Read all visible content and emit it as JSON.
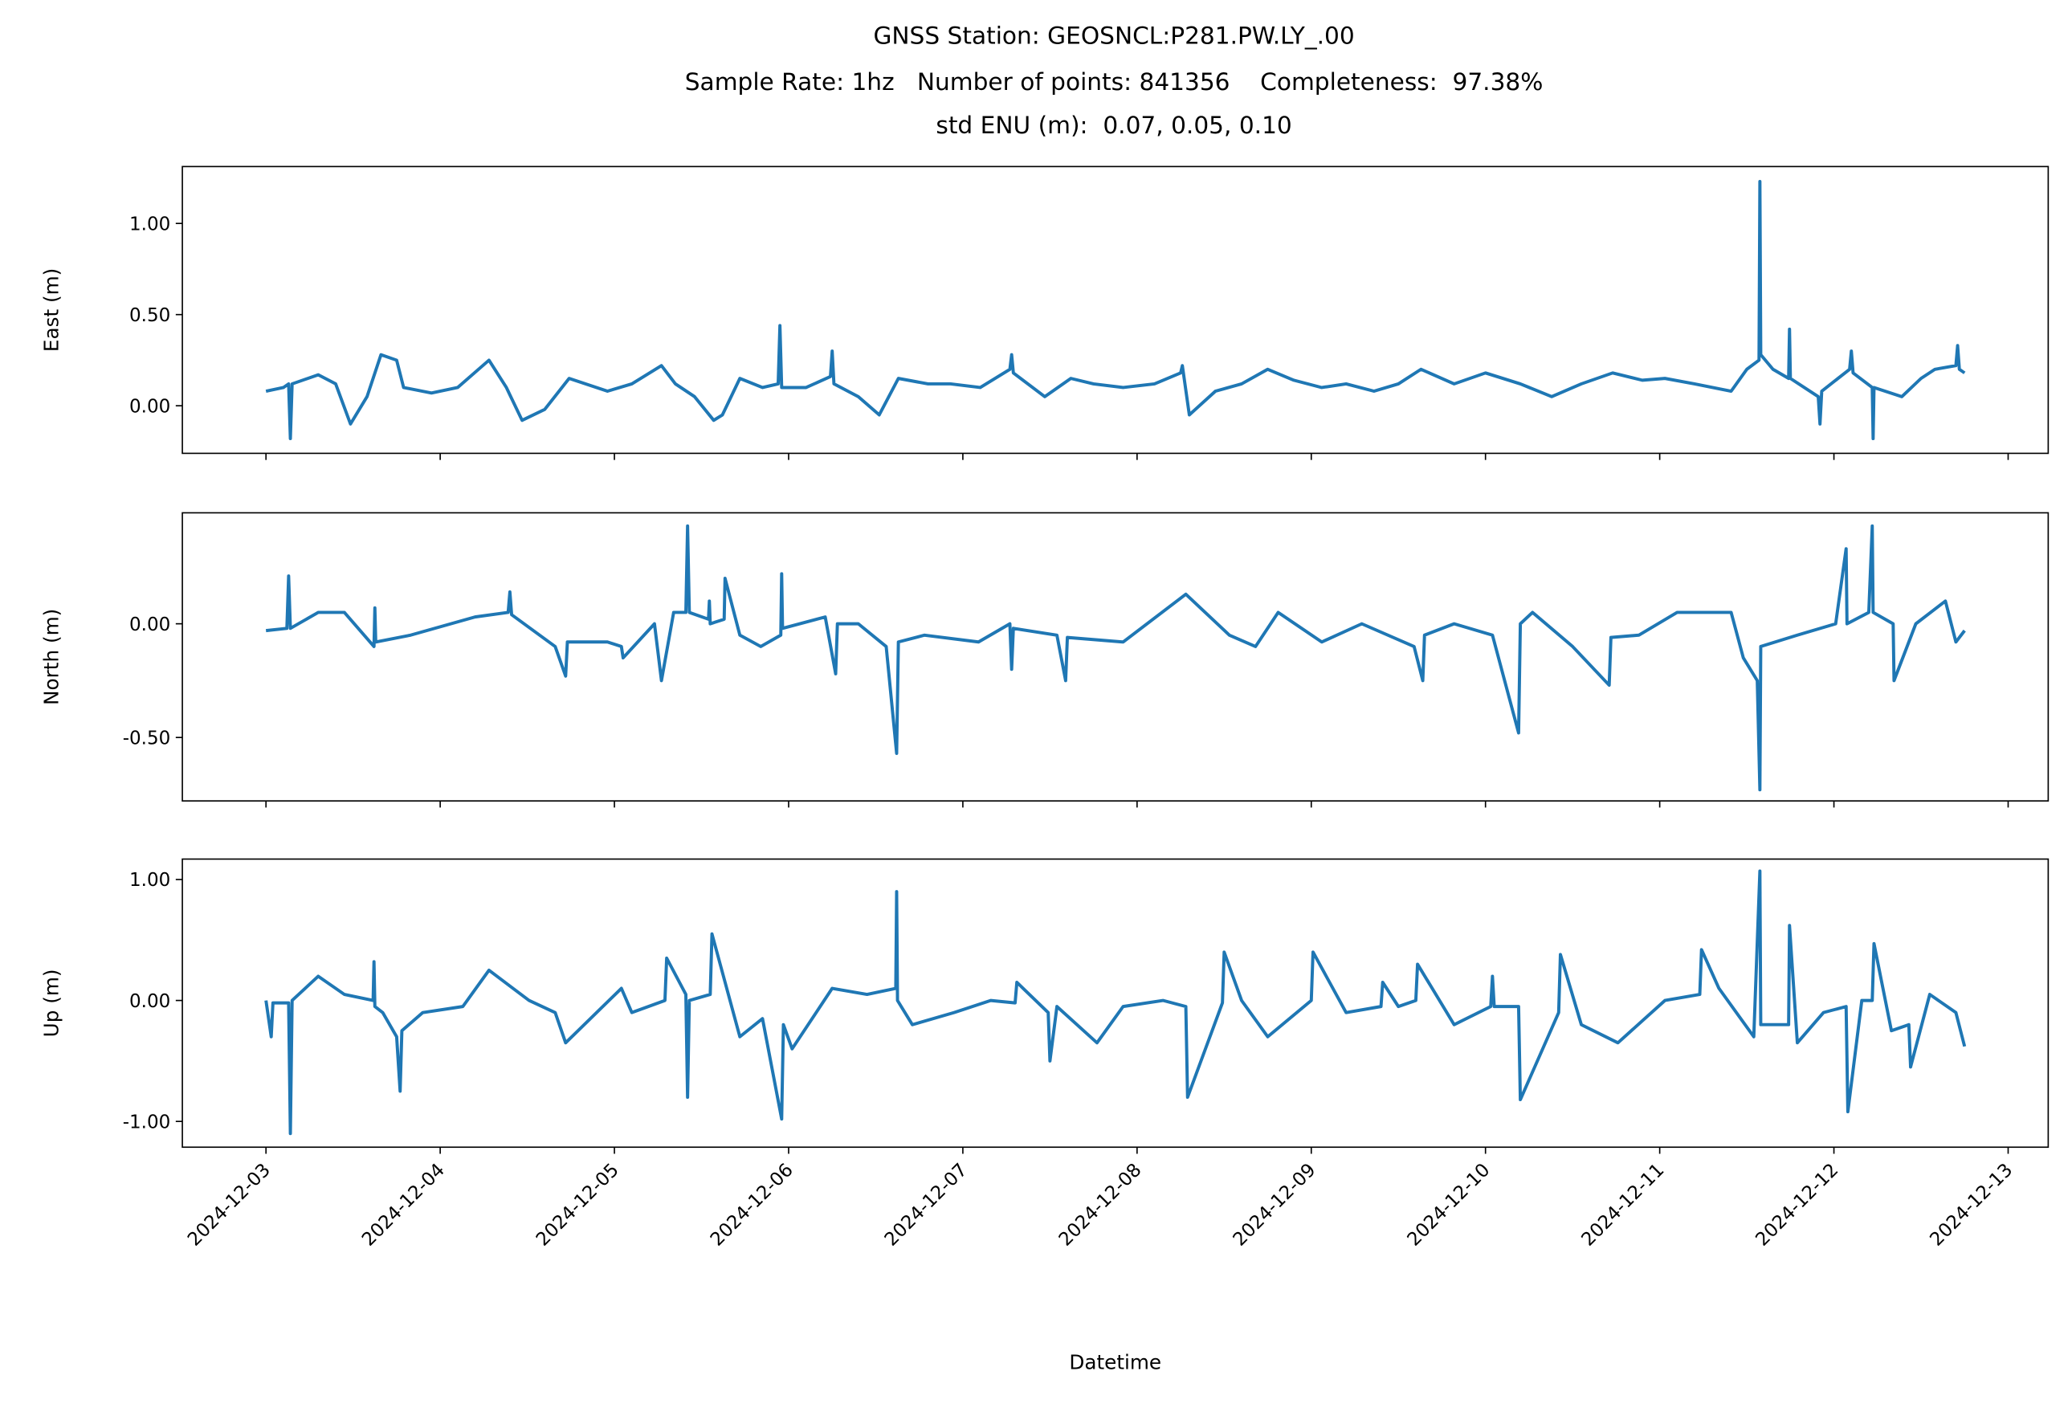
{
  "chart_data": [
    {
      "type": "line",
      "title": "GNSS Station: GEOSNCL:P281.PW.LY_.00",
      "subtitle": [
        "Sample Rate: 1hz   Number of points: 841356    Completeness:  97.38%",
        "std ENU (m):  0.07, 0.05, 0.10"
      ],
      "ylabel": "East (m)",
      "color": "#1f77b4",
      "ylim": [
        -0.261,
        1.312
      ],
      "yticks": [
        {
          "value": 0,
          "label": "0.00"
        },
        {
          "value": 0.5,
          "label": "0.50"
        },
        {
          "value": 1,
          "label": "1.00"
        }
      ],
      "x": [
        20060.0,
        20060.1,
        20060.13,
        20060.14,
        20060.15,
        20060.3,
        20060.4,
        20060.485,
        20060.58,
        20060.66,
        20060.75,
        20060.79,
        20060.95,
        20061.1,
        20061.28,
        20061.38,
        20061.47,
        20061.6,
        20061.74,
        20061.96,
        20062.1,
        20062.27,
        20062.35,
        20062.46,
        20062.57,
        20062.62,
        20062.72,
        20062.85,
        20062.94,
        20062.95,
        20062.96,
        20063.1,
        20063.24,
        20063.25,
        20063.26,
        20063.4,
        20063.52,
        20063.63,
        20063.8,
        20063.93,
        20064.1,
        20064.27,
        20064.28,
        20064.29,
        20064.47,
        20064.62,
        20064.75,
        20064.92,
        20065.1,
        20065.25,
        20065.26,
        20065.3,
        20065.45,
        20065.6,
        20065.75,
        20065.9,
        20066.06,
        20066.2,
        20066.36,
        20066.5,
        20066.63,
        20066.82,
        20067.0,
        20067.2,
        20067.38,
        20067.55,
        20067.73,
        20067.9,
        20068.03,
        20068.2,
        20068.41,
        20068.5,
        20068.57,
        20068.575,
        20068.58,
        20068.65,
        20068.74,
        20068.745,
        20068.75,
        20068.91,
        20068.92,
        20068.93,
        20069.09,
        20069.1,
        20069.11,
        20069.22,
        20069.225,
        20069.23,
        20069.39,
        20069.5,
        20069.58,
        20069.7,
        20069.71,
        20069.72,
        20069.75
      ],
      "values": [
        0.08,
        0.1,
        0.12,
        -0.18,
        0.12,
        0.17,
        0.12,
        -0.1,
        0.05,
        0.28,
        0.25,
        0.1,
        0.07,
        0.1,
        0.25,
        0.1,
        -0.08,
        -0.02,
        0.15,
        0.08,
        0.12,
        0.22,
        0.12,
        0.05,
        -0.08,
        -0.05,
        0.15,
        0.1,
        0.12,
        0.44,
        0.1,
        0.1,
        0.16,
        0.3,
        0.12,
        0.05,
        -0.05,
        0.15,
        0.12,
        0.12,
        0.1,
        0.2,
        0.28,
        0.18,
        0.05,
        0.15,
        0.12,
        0.1,
        0.12,
        0.18,
        0.22,
        -0.05,
        0.08,
        0.12,
        0.2,
        0.14,
        0.1,
        0.12,
        0.08,
        0.12,
        0.2,
        0.12,
        0.18,
        0.12,
        0.05,
        0.12,
        0.18,
        0.14,
        0.15,
        0.12,
        0.08,
        0.2,
        0.25,
        1.23,
        0.28,
        0.2,
        0.15,
        0.42,
        0.15,
        0.05,
        -0.1,
        0.08,
        0.2,
        0.3,
        0.18,
        0.1,
        -0.18,
        0.1,
        0.05,
        0.15,
        0.2,
        0.22,
        0.33,
        0.2,
        0.18
      ]
    },
    {
      "type": "line",
      "ylabel": "North (m)",
      "color": "#1f77b4",
      "ylim": [
        -0.779,
        0.488
      ],
      "yticks": [
        {
          "value": -0.5,
          "label": "-0.50"
        },
        {
          "value": 0,
          "label": "0.00"
        }
      ],
      "x": [
        20060.0,
        20060.12,
        20060.13,
        20060.14,
        20060.3,
        20060.45,
        20060.62,
        20060.625,
        20060.63,
        20060.83,
        20061.2,
        20061.39,
        20061.4,
        20061.41,
        20061.66,
        20061.72,
        20061.73,
        20061.96,
        20062.04,
        20062.05,
        20062.23,
        20062.27,
        20062.34,
        20062.41,
        20062.42,
        20062.43,
        20062.54,
        20062.545,
        20062.55,
        20062.63,
        20062.635,
        20062.72,
        20062.84,
        20062.955,
        20062.96,
        20062.965,
        20063.21,
        20063.27,
        20063.28,
        20063.4,
        20063.56,
        20063.62,
        20063.63,
        20063.78,
        20064.09,
        20064.27,
        20064.28,
        20064.29,
        20064.54,
        20064.59,
        20064.6,
        20064.92,
        20065.28,
        20065.53,
        20065.68,
        20065.81,
        20066.06,
        20066.29,
        20066.59,
        20066.64,
        20066.65,
        20066.82,
        20067.04,
        20067.19,
        20067.2,
        20067.27,
        20067.5,
        20067.71,
        20067.72,
        20067.88,
        20068.1,
        20068.41,
        20068.48,
        20068.56,
        20068.575,
        20068.58,
        20068.79,
        20069.01,
        20069.07,
        20069.075,
        20069.2,
        20069.22,
        20069.225,
        20069.34,
        20069.345,
        20069.47,
        20069.64,
        20069.7,
        20069.75
      ],
      "values": [
        -0.03,
        -0.02,
        0.21,
        -0.02,
        0.05,
        0.05,
        -0.1,
        0.07,
        -0.08,
        -0.05,
        0.03,
        0.05,
        0.14,
        0.04,
        -0.1,
        -0.23,
        -0.08,
        -0.08,
        -0.1,
        -0.15,
        0.0,
        -0.25,
        0.05,
        0.05,
        0.43,
        0.05,
        0.02,
        0.1,
        0.0,
        0.02,
        0.2,
        -0.05,
        -0.1,
        -0.05,
        0.22,
        -0.02,
        0.03,
        -0.22,
        0.0,
        0.0,
        -0.1,
        -0.57,
        -0.08,
        -0.05,
        -0.08,
        0.0,
        -0.2,
        -0.02,
        -0.05,
        -0.25,
        -0.06,
        -0.08,
        0.13,
        -0.05,
        -0.1,
        0.05,
        -0.08,
        0.0,
        -0.1,
        -0.25,
        -0.05,
        0.0,
        -0.05,
        -0.48,
        0.0,
        0.05,
        -0.1,
        -0.27,
        -0.06,
        -0.05,
        0.05,
        0.05,
        -0.15,
        -0.25,
        -0.73,
        -0.1,
        -0.05,
        0.0,
        0.33,
        0.0,
        0.05,
        0.43,
        0.05,
        0.0,
        -0.25,
        0.0,
        0.1,
        -0.08,
        -0.03
      ]
    },
    {
      "type": "line",
      "ylabel": "Up (m)",
      "xlabel": "Datetime",
      "color": "#1f77b4",
      "ylim": [
        -1.213,
        1.169
      ],
      "yticks": [
        {
          "value": -1,
          "label": "-1.00"
        },
        {
          "value": 0,
          "label": "0.00"
        },
        {
          "value": 1,
          "label": "1.00"
        }
      ],
      "xlim": [
        20059.52,
        20070.23
      ],
      "xticks": [
        {
          "value": 20060,
          "label": "2024-12-03"
        },
        {
          "value": 20061,
          "label": "2024-12-04"
        },
        {
          "value": 20062,
          "label": "2024-12-05"
        },
        {
          "value": 20063,
          "label": "2024-12-06"
        },
        {
          "value": 20064,
          "label": "2024-12-07"
        },
        {
          "value": 20065,
          "label": "2024-12-08"
        },
        {
          "value": 20066,
          "label": "2024-12-09"
        },
        {
          "value": 20067,
          "label": "2024-12-10"
        },
        {
          "value": 20068,
          "label": "2024-12-11"
        },
        {
          "value": 20069,
          "label": "2024-12-12"
        },
        {
          "value": 20070,
          "label": "2024-12-13"
        }
      ],
      "x": [
        20060.0,
        20060.03,
        20060.04,
        20060.13,
        20060.14,
        20060.15,
        20060.3,
        20060.45,
        20060.615,
        20060.62,
        20060.625,
        20060.67,
        20060.75,
        20060.77,
        20060.78,
        20060.9,
        20061.13,
        20061.28,
        20061.51,
        20061.66,
        20061.72,
        20062.04,
        20062.1,
        20062.29,
        20062.3,
        20062.41,
        20062.42,
        20062.43,
        20062.55,
        20062.56,
        20062.72,
        20062.85,
        20062.96,
        20062.97,
        20063.02,
        20063.25,
        20063.45,
        20063.615,
        20063.62,
        20063.625,
        20063.71,
        20063.95,
        20064.16,
        20064.3,
        20064.31,
        20064.49,
        20064.5,
        20064.54,
        20064.77,
        20064.92,
        20065.15,
        20065.28,
        20065.29,
        20065.49,
        20065.5,
        20065.6,
        20065.75,
        20066.0,
        20066.01,
        20066.2,
        20066.4,
        20066.41,
        20066.5,
        20066.6,
        20066.61,
        20066.82,
        20067.03,
        20067.04,
        20067.05,
        20067.19,
        20067.2,
        20067.42,
        20067.43,
        20067.55,
        20067.76,
        20068.03,
        20068.23,
        20068.24,
        20068.34,
        20068.54,
        20068.575,
        20068.58,
        20068.74,
        20068.745,
        20068.79,
        20068.94,
        20069.07,
        20069.08,
        20069.16,
        20069.22,
        20069.23,
        20069.33,
        20069.43,
        20069.44,
        20069.55,
        20069.7,
        20069.75
      ],
      "values": [
        0.0,
        -0.3,
        -0.02,
        -0.02,
        -1.1,
        0.0,
        0.2,
        0.05,
        0.0,
        0.32,
        -0.05,
        -0.1,
        -0.3,
        -0.75,
        -0.25,
        -0.1,
        -0.05,
        0.25,
        0.0,
        -0.1,
        -0.35,
        0.1,
        -0.1,
        0.0,
        0.35,
        0.05,
        -0.8,
        0.0,
        0.05,
        0.55,
        -0.3,
        -0.15,
        -0.98,
        -0.2,
        -0.4,
        0.1,
        0.05,
        0.1,
        0.9,
        0.0,
        -0.2,
        -0.1,
        0.0,
        -0.02,
        0.15,
        -0.1,
        -0.5,
        -0.05,
        -0.35,
        -0.05,
        0.0,
        -0.05,
        -0.8,
        -0.02,
        0.4,
        0.0,
        -0.3,
        0.0,
        0.4,
        -0.1,
        -0.05,
        0.15,
        -0.05,
        0.0,
        0.3,
        -0.2,
        -0.05,
        0.2,
        -0.05,
        -0.05,
        -0.82,
        -0.1,
        0.38,
        -0.2,
        -0.35,
        0.0,
        0.05,
        0.42,
        0.1,
        -0.3,
        1.07,
        -0.2,
        -0.2,
        0.62,
        -0.35,
        -0.1,
        -0.05,
        -0.92,
        0.0,
        0.0,
        0.47,
        -0.25,
        -0.2,
        -0.55,
        0.05,
        -0.1,
        -0.38
      ]
    }
  ]
}
